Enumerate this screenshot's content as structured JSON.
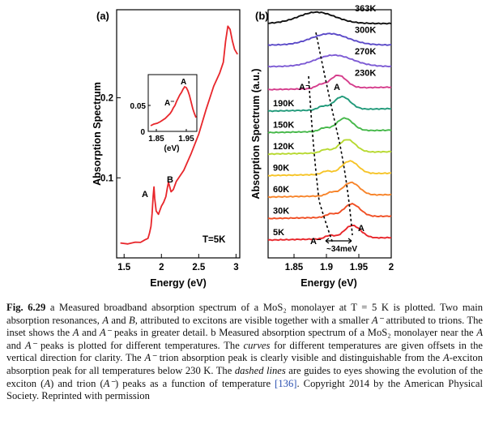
{
  "figure": {
    "panel_a": {
      "panel_label": "(a)",
      "ylabel": "Absorption Spectrum",
      "xlabel": "Energy (eV)",
      "xticks": [
        "1.5",
        "2",
        "2.5",
        "3"
      ],
      "yticks": [
        "0.1",
        "0.2"
      ],
      "annotations": {
        "peak_A": "A",
        "peak_B": "B",
        "temperature": "T=5K"
      },
      "inset": {
        "ytick": "0.05",
        "ytick_zero": "0",
        "xticks": [
          "1.85",
          "1.95"
        ],
        "xlabel": "(eV)",
        "label_Aminus": "A⁻",
        "label_A": "A"
      }
    },
    "panel_b": {
      "panel_label": "(b)",
      "ylabel": "Absorption Spectrum (a.u.)",
      "xlabel": "Energy (eV)",
      "xticks": [
        "1.85",
        "1.9",
        "1.95",
        "2"
      ],
      "annotations": {
        "Aminus_top": "A⁻",
        "A_top": "A",
        "Aminus_bottom": "A⁻",
        "A_bottom": "A",
        "splitting": "~34meV"
      }
    }
  },
  "chart_data": [
    {
      "type": "line",
      "title": "(a)",
      "xlabel": "Energy (eV)",
      "ylabel": "Absorption Spectrum",
      "xlim": [
        1.4,
        3.05
      ],
      "ylim": [
        0,
        0.31
      ],
      "series": [
        {
          "name": "T=5K",
          "color": "#e8262b",
          "x": [
            1.45,
            1.55,
            1.65,
            1.72,
            1.78,
            1.82,
            1.84,
            1.86,
            1.875,
            1.89,
            1.9,
            1.91,
            1.93,
            1.96,
            2.0,
            2.03,
            2.06,
            2.08,
            2.095,
            2.11,
            2.13,
            2.16,
            2.2,
            2.3,
            2.4,
            2.5,
            2.6,
            2.7,
            2.78,
            2.83,
            2.86,
            2.89,
            2.92,
            2.95,
            2.98,
            3.02
          ],
          "y": [
            0.018,
            0.018,
            0.019,
            0.02,
            0.022,
            0.025,
            0.03,
            0.04,
            0.055,
            0.078,
            0.088,
            0.075,
            0.058,
            0.055,
            0.064,
            0.07,
            0.076,
            0.088,
            0.094,
            0.09,
            0.082,
            0.086,
            0.095,
            0.11,
            0.13,
            0.155,
            0.185,
            0.215,
            0.23,
            0.245,
            0.27,
            0.29,
            0.285,
            0.272,
            0.26,
            0.255
          ]
        }
      ]
    },
    {
      "type": "line",
      "title": "(b)",
      "xlabel": "Energy (eV)",
      "ylabel": "Absorption Spectrum (a.u.)",
      "xlim": [
        1.81,
        2.0
      ],
      "series": [
        {
          "name": "5K",
          "color": "#e8262b",
          "label_color": "#000000",
          "offset": 0,
          "Aminus": 1.905,
          "A": 1.94
        },
        {
          "name": "30K",
          "color": "#f04f24",
          "offset": 1,
          "Aminus": 1.906,
          "A": 1.939
        },
        {
          "name": "60K",
          "color": "#f7842a",
          "offset": 2,
          "Aminus": 1.907,
          "A": 1.938
        },
        {
          "name": "90K",
          "color": "#f6c428",
          "offset": 3,
          "Aminus": 1.9,
          "A": 1.936
        },
        {
          "name": "120K",
          "color": "#b7d931",
          "offset": 4,
          "Aminus": 1.898,
          "A": 1.932
        },
        {
          "name": "150K",
          "color": "#46b84a",
          "offset": 5,
          "Aminus": 1.896,
          "A": 1.928
        },
        {
          "name": "190K",
          "color": "#219a7a",
          "offset": 6,
          "Aminus": 1.893,
          "A": 1.924
        },
        {
          "name": "230K",
          "color": "#d53d8c",
          "offset": 7,
          "Aminus": 1.89,
          "A": 1.918
        },
        {
          "name": "270K",
          "color": "#7d5bd4",
          "offset": 8,
          "A": 1.912
        },
        {
          "name": "300K",
          "color": "#5c4bc8",
          "offset": 9,
          "A": 1.905
        },
        {
          "name": "363K",
          "color": "#111111",
          "offset": 10,
          "A": 1.885
        }
      ]
    }
  ],
  "caption": {
    "lead": "Fig. 6.29",
    "text_parts": [
      {
        "t": " a Measured broadband absorption spectrum of a MoS₂ monolayer at T = 5 K is plotted. Two main absorption resonances, ",
        "i": false
      },
      {
        "t": "A",
        "i": true
      },
      {
        "t": " and ",
        "i": false
      },
      {
        "t": "B",
        "i": true
      },
      {
        "t": ", attributed to excitons are visible together with a smaller ",
        "i": false
      },
      {
        "t": "A⁻",
        "i": true
      },
      {
        "t": " attributed to trions. The inset shows the ",
        "i": false
      },
      {
        "t": "A",
        "i": true
      },
      {
        "t": " and ",
        "i": false
      },
      {
        "t": "A⁻",
        "i": true
      },
      {
        "t": " peaks in greater detail. b Measured absorption spectrum of a MoS₂ monolayer near the ",
        "i": false
      },
      {
        "t": "A",
        "i": true
      },
      {
        "t": " and ",
        "i": false
      },
      {
        "t": "A⁻",
        "i": true
      },
      {
        "t": " peaks is plotted for different temperatures. The ",
        "i": false
      },
      {
        "t": "curves",
        "i": true
      },
      {
        "t": " for different temperatures are given offsets in the vertical direction for clarity. The ",
        "i": false
      },
      {
        "t": "A⁻",
        "i": true
      },
      {
        "t": " trion absorption peak is clearly visible and distinguishable from the ",
        "i": false
      },
      {
        "t": "A",
        "i": true
      },
      {
        "t": "-exciton absorption peak for all temperatures below 230 K. The ",
        "i": false
      },
      {
        "t": "dashed lines",
        "i": true
      },
      {
        "t": " are guides to eyes showing the evolution of the exciton (",
        "i": false
      },
      {
        "t": "A",
        "i": true
      },
      {
        "t": ") and trion (",
        "i": false
      },
      {
        "t": "A⁻",
        "i": true
      },
      {
        "t": ") peaks as a function of temperature ",
        "i": false
      },
      {
        "t": "[136]",
        "i": false,
        "ref": true
      },
      {
        "t": ". Copyright 2014 by the American Physical Society. Reprinted with permission",
        "i": false
      }
    ]
  }
}
